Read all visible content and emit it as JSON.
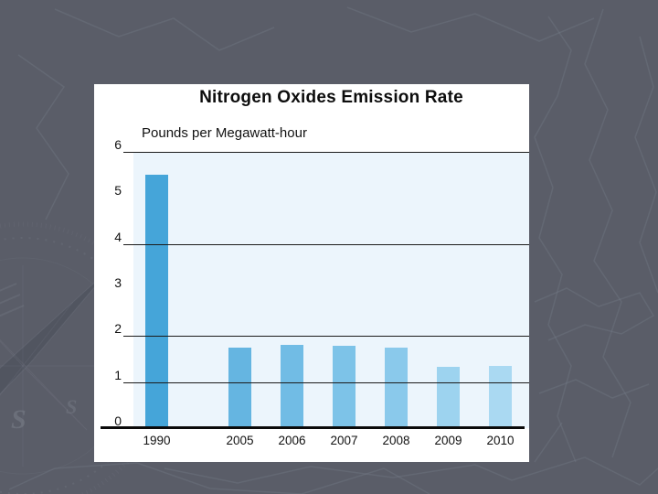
{
  "slide": {
    "background_color": "#5a5d68",
    "watermarks": [
      "compass-rose-watermark",
      "map-outline-watermark"
    ]
  },
  "chart_data": {
    "type": "bar",
    "title": "Nitrogen Oxides Emission Rate",
    "ylabel": "Pounds per Megawatt-hour",
    "xlabel": "",
    "categories": [
      "1990",
      "2005",
      "2006",
      "2007",
      "2008",
      "2009",
      "2010"
    ],
    "values": [
      5.5,
      1.75,
      1.8,
      1.78,
      1.75,
      1.33,
      1.35
    ],
    "bar_colors": [
      "#45a5d9",
      "#65b5e1",
      "#71bce5",
      "#7dc3e8",
      "#8ac9eb",
      "#9dd3ef",
      "#aad9f2"
    ],
    "ylim": [
      0,
      6
    ],
    "yticks": [
      0,
      1,
      2,
      3,
      4,
      5,
      6
    ],
    "gridline_values": [
      1,
      2,
      4,
      6
    ],
    "legend": "none",
    "grid": "horizontal-partial",
    "plot_bg_color": "#ecf5fc",
    "panel_bg_color": "#ffffff",
    "axis_color": "#111111",
    "text_color": "#111111"
  }
}
